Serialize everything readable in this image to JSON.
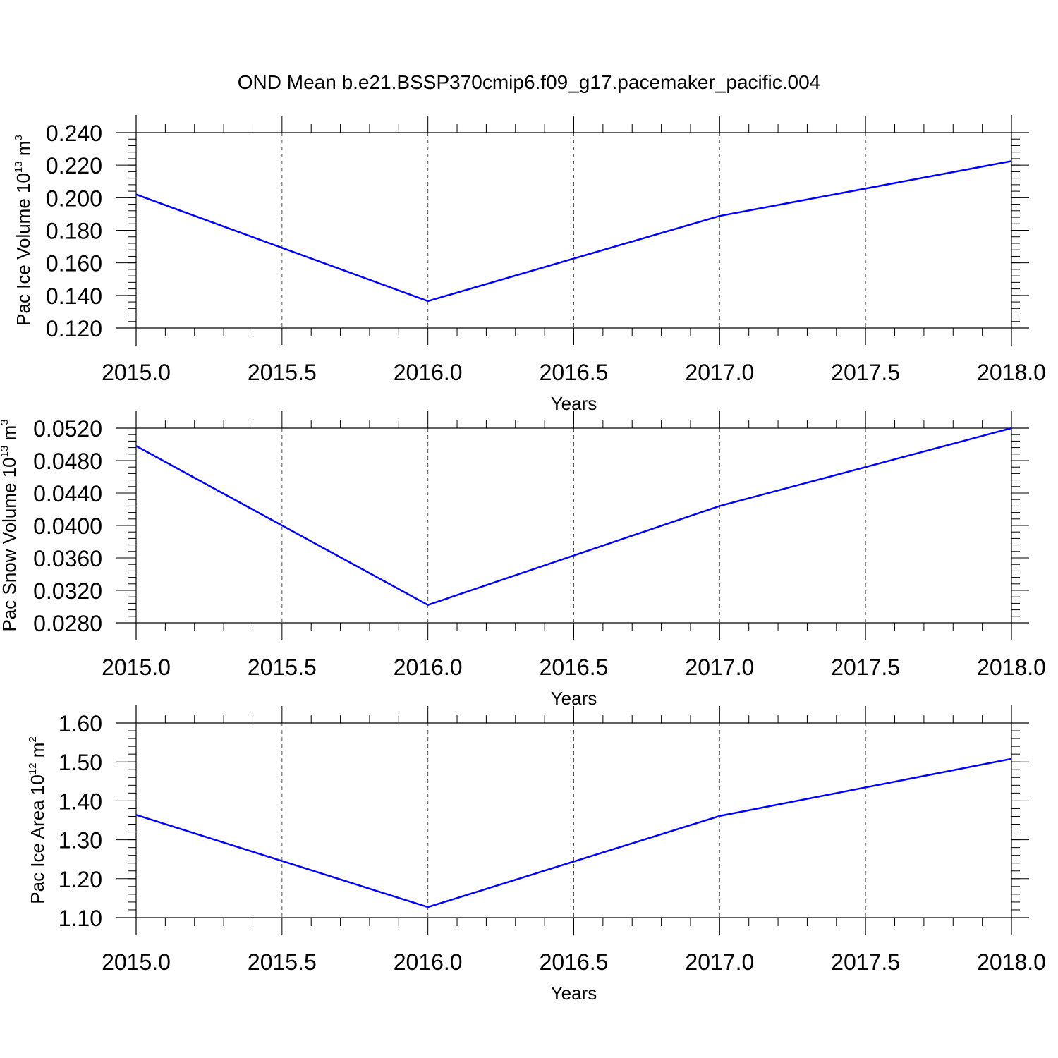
{
  "figure": {
    "title": "OND Mean b.e21.BSSP370cmip6.f09_g17.pacemaker_pacific.004",
    "line_color": "#0000ff"
  },
  "chart_data": [
    {
      "type": "line",
      "title": "",
      "xlabel": "Years",
      "ylabel_parts": [
        "Pac Ice Volume 10",
        "13",
        " m",
        "3"
      ],
      "x": [
        2015.0,
        2016.0,
        2017.0,
        2018.0
      ],
      "series": [
        {
          "values": [
            0.202,
            0.1365,
            0.1888,
            0.2225
          ]
        }
      ],
      "xlim": [
        2015.0,
        2018.0
      ],
      "ylim": [
        0.12,
        0.24
      ],
      "xticks": [
        2015.0,
        2015.5,
        2016.0,
        2016.5,
        2017.0,
        2017.5,
        2018.0
      ],
      "xtick_labels": [
        "2015.0",
        "2015.5",
        "2016.0",
        "2016.5",
        "2017.0",
        "2017.5",
        "2018.0"
      ],
      "yticks": [
        0.12,
        0.14,
        0.16,
        0.18,
        0.2,
        0.22,
        0.24
      ],
      "ytick_labels": [
        "0.120",
        "0.140",
        "0.160",
        "0.180",
        "0.200",
        "0.220",
        "0.240"
      ],
      "y_minor_step": 0.004,
      "grid": "vertical dashed"
    },
    {
      "type": "line",
      "title": "",
      "xlabel": "Years",
      "ylabel_parts": [
        "Pac Snow Volume 10",
        "13",
        " m",
        "3"
      ],
      "x": [
        2015.0,
        2016.0,
        2017.0,
        2018.0
      ],
      "series": [
        {
          "values": [
            0.0498,
            0.0302,
            0.0424,
            0.052
          ]
        }
      ],
      "xlim": [
        2015.0,
        2018.0
      ],
      "ylim": [
        0.028,
        0.052
      ],
      "xticks": [
        2015.0,
        2015.5,
        2016.0,
        2016.5,
        2017.0,
        2017.5,
        2018.0
      ],
      "xtick_labels": [
        "2015.0",
        "2015.5",
        "2016.0",
        "2016.5",
        "2017.0",
        "2017.5",
        "2018.0"
      ],
      "yticks": [
        0.028,
        0.032,
        0.036,
        0.04,
        0.044,
        0.048,
        0.052
      ],
      "ytick_labels": [
        "0.0280",
        "0.0320",
        "0.0360",
        "0.0400",
        "0.0440",
        "0.0480",
        "0.0520"
      ],
      "y_minor_step": 0.0008,
      "grid": "vertical dashed"
    },
    {
      "type": "line",
      "title": "",
      "xlabel": "Years",
      "ylabel_parts": [
        "Pac Ice Area 10",
        "12",
        " m",
        "2"
      ],
      "x": [
        2015.0,
        2016.0,
        2017.0,
        2018.0
      ],
      "series": [
        {
          "values": [
            1.364,
            1.127,
            1.361,
            1.508
          ]
        }
      ],
      "xlim": [
        2015.0,
        2018.0
      ],
      "ylim": [
        1.1,
        1.6
      ],
      "xticks": [
        2015.0,
        2015.5,
        2016.0,
        2016.5,
        2017.0,
        2017.5,
        2018.0
      ],
      "xtick_labels": [
        "2015.0",
        "2015.5",
        "2016.0",
        "2016.5",
        "2017.0",
        "2017.5",
        "2018.0"
      ],
      "yticks": [
        1.1,
        1.2,
        1.3,
        1.4,
        1.5,
        1.6
      ],
      "ytick_labels": [
        "1.10",
        "1.20",
        "1.30",
        "1.40",
        "1.50",
        "1.60"
      ],
      "y_minor_step": 0.02,
      "grid": "vertical dashed"
    }
  ]
}
